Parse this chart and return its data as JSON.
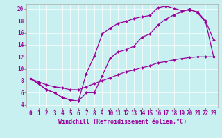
{
  "xlabel": "Windchill (Refroidissement éolien,°C)",
  "background_color": "#c8f0f0",
  "line_color": "#990099",
  "xlim": [
    -0.5,
    23.5
  ],
  "ylim": [
    3.5,
    20.8
  ],
  "xticks": [
    0,
    1,
    2,
    3,
    4,
    5,
    6,
    7,
    8,
    9,
    10,
    11,
    12,
    13,
    14,
    15,
    16,
    17,
    18,
    19,
    20,
    21,
    22,
    23
  ],
  "yticks": [
    4,
    6,
    8,
    10,
    12,
    14,
    16,
    18,
    20
  ],
  "line1_x": [
    0,
    1,
    2,
    3,
    4,
    5,
    6,
    7,
    8,
    9,
    10,
    11,
    12,
    13,
    14,
    15,
    16,
    17,
    18,
    19,
    20,
    21,
    22,
    23
  ],
  "line1_y": [
    8.3,
    7.5,
    6.5,
    6.0,
    5.2,
    4.8,
    4.6,
    9.2,
    12.1,
    15.8,
    16.8,
    17.6,
    17.9,
    18.4,
    18.7,
    18.9,
    20.2,
    20.5,
    20.1,
    19.7,
    19.8,
    19.5,
    18.0,
    14.8
  ],
  "line2_x": [
    0,
    1,
    2,
    3,
    4,
    5,
    6,
    7,
    8,
    9,
    10,
    11,
    12,
    13,
    14,
    15,
    16,
    17,
    18,
    19,
    20,
    21,
    22,
    23
  ],
  "line2_y": [
    8.3,
    7.5,
    6.5,
    6.0,
    5.2,
    4.8,
    4.6,
    6.0,
    6.0,
    8.8,
    11.8,
    12.8,
    13.2,
    13.8,
    15.3,
    15.8,
    17.3,
    18.3,
    19.0,
    19.5,
    20.0,
    19.3,
    17.8,
    12.0
  ],
  "line3_x": [
    0,
    1,
    2,
    3,
    4,
    5,
    6,
    7,
    8,
    9,
    10,
    11,
    12,
    13,
    14,
    15,
    16,
    17,
    18,
    19,
    20,
    21,
    22,
    23
  ],
  "line3_y": [
    8.3,
    7.8,
    7.3,
    7.0,
    6.8,
    6.5,
    6.5,
    7.0,
    7.5,
    8.0,
    8.5,
    9.0,
    9.5,
    9.8,
    10.2,
    10.5,
    11.0,
    11.2,
    11.5,
    11.7,
    11.9,
    12.0,
    12.0,
    12.0
  ],
  "tick_fontsize": 5.5,
  "label_fontsize": 6.0
}
